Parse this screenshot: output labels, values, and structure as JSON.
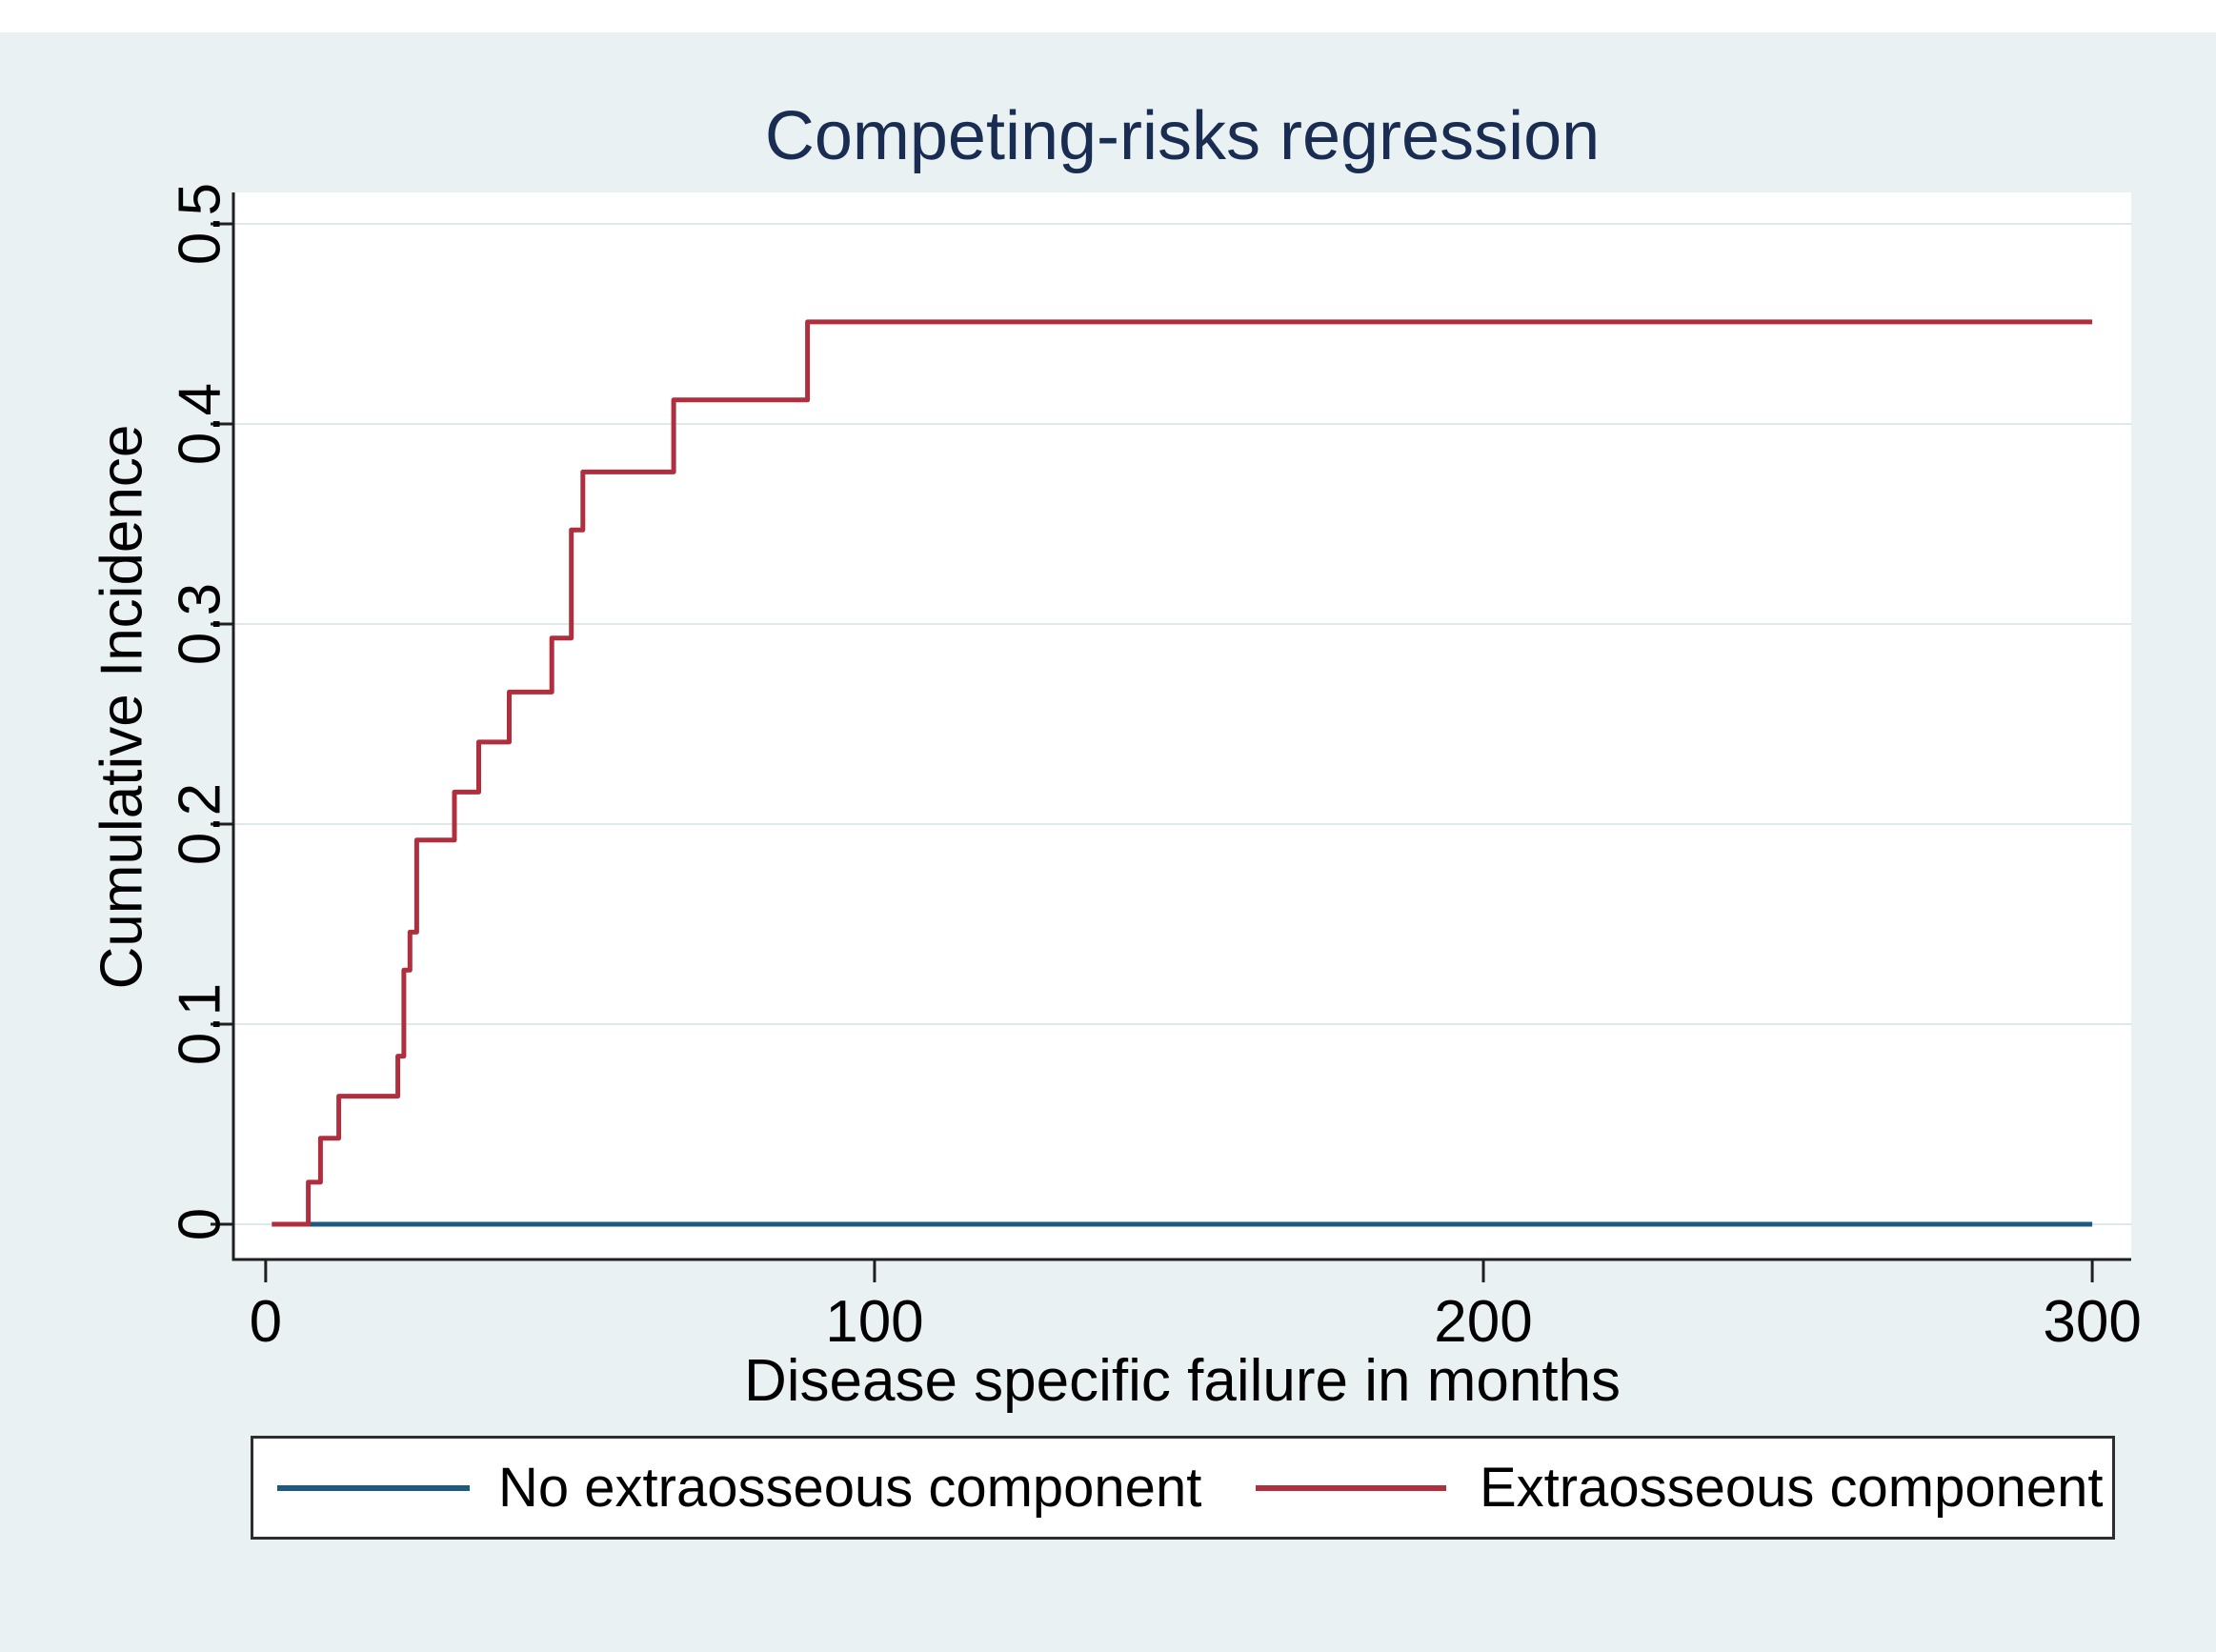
{
  "title": "Competing-risks regression",
  "colors": {
    "panel_background": "#e9f1f2",
    "plot_background": "#ffffff",
    "gridline": "#dde9eb",
    "axis_line": "#1f1f1f",
    "tick_text": "#000000",
    "title_text": "#192c52",
    "legend_border": "#2e2e2e",
    "series_blue": "#1c5a82",
    "series_red": "#b02f3f"
  },
  "chart_data": {
    "type": "line",
    "subtype": "step-cumulative-incidence",
    "title": "Competing-risks regression",
    "xlabel": "Disease specific failure in months",
    "ylabel": "Cumulative Incidence",
    "xlim": [
      -5.3,
      306.4
    ],
    "ylim": [
      -0.0176,
      0.5157
    ],
    "grid": "horizontal",
    "legend_position": "bottom",
    "x_ticks": {
      "values": [
        0,
        100,
        200,
        300
      ],
      "labels": [
        "0",
        "100",
        "200",
        "300"
      ]
    },
    "y_ticks": {
      "values": [
        0,
        0.1,
        0.2,
        0.3,
        0.4,
        0.5
      ],
      "labels": [
        "0",
        "0.1",
        "0.2",
        "0.3",
        "0.4",
        "0.5"
      ]
    },
    "series": [
      {
        "name": "No extraosseous component",
        "color": "#1c5a82",
        "points": [
          [
            7,
            0
          ],
          [
            300,
            0
          ]
        ]
      },
      {
        "name": "Extraosseous component",
        "color": "#b02f3f",
        "points": [
          [
            1,
            0
          ],
          [
            7,
            0.021
          ],
          [
            9,
            0.043
          ],
          [
            12,
            0.064
          ],
          [
            21.7,
            0.084
          ],
          [
            22.7,
            0.127
          ],
          [
            23.7,
            0.146
          ],
          [
            24.8,
            0.192
          ],
          [
            31,
            0.216
          ],
          [
            35,
            0.241
          ],
          [
            40,
            0.266
          ],
          [
            47,
            0.293
          ],
          [
            50.2,
            0.347
          ],
          [
            52.1,
            0.376
          ],
          [
            67,
            0.412
          ],
          [
            89,
            0.451
          ],
          [
            300,
            0.451
          ]
        ]
      }
    ]
  },
  "legend": {
    "items": [
      {
        "label": "No extraosseous component",
        "color": "#1c5a82"
      },
      {
        "label": "Extraosseous component",
        "color": "#b02f3f"
      }
    ]
  }
}
